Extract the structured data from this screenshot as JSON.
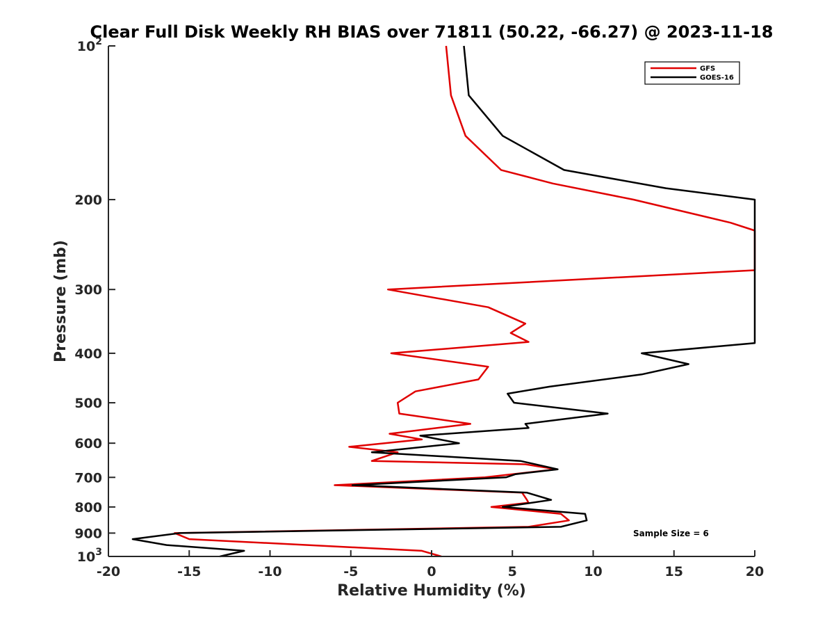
{
  "chart_data": {
    "type": "line",
    "title": "Clear Full Disk Weekly RH BIAS over 71811 (50.22, -66.27) @ 2023-11-18",
    "xlabel": "Relative Humidity (%)",
    "ylabel": "Pressure (mb)",
    "xlim": [
      -20,
      20
    ],
    "ylim": [
      100,
      1000
    ],
    "y_scale": "log",
    "y_reversed": true,
    "grid": false,
    "legend_position": "top-right",
    "x_ticks": [
      "-20",
      "-15",
      "-10",
      "-5",
      "0",
      "5",
      "10",
      "15",
      "20"
    ],
    "y_ticks": [
      {
        "base": "10",
        "exp": "2"
      },
      {
        "base": "200",
        "exp": ""
      },
      {
        "base": "300",
        "exp": ""
      },
      {
        "base": "400",
        "exp": ""
      },
      {
        "base": "500",
        "exp": ""
      },
      {
        "base": "600",
        "exp": ""
      },
      {
        "base": "700",
        "exp": ""
      },
      {
        "base": "800",
        "exp": ""
      },
      {
        "base": "900",
        "exp": ""
      },
      {
        "base": "10",
        "exp": "3"
      }
    ],
    "series": [
      {
        "name": "GFS",
        "color": "#e00000",
        "points": [
          [
            0.9,
            100
          ],
          [
            1.2,
            125
          ],
          [
            2.1,
            150
          ],
          [
            4.3,
            175
          ],
          [
            7.5,
            186
          ],
          [
            12.5,
            200
          ],
          [
            18.5,
            222
          ],
          [
            20,
            230
          ],
          [
            20,
            275
          ],
          [
            -2.7,
            300
          ],
          [
            3.5,
            325
          ],
          [
            5.8,
            350
          ],
          [
            4.9,
            365
          ],
          [
            6.0,
            380
          ],
          [
            -2.5,
            400
          ],
          [
            3.5,
            425
          ],
          [
            2.9,
            450
          ],
          [
            -1.0,
            475
          ],
          [
            -2.1,
            500
          ],
          [
            -2.0,
            525
          ],
          [
            2.4,
            550
          ],
          [
            -2.6,
            575
          ],
          [
            -0.6,
            590
          ],
          [
            -5.1,
            610
          ],
          [
            -2.1,
            625
          ],
          [
            -3.7,
            650
          ],
          [
            5.8,
            660
          ],
          [
            7.7,
            675
          ],
          [
            3.3,
            700
          ],
          [
            -6.0,
            725
          ],
          [
            5.6,
            750
          ],
          [
            5.9,
            775
          ],
          [
            6.0,
            785
          ],
          [
            3.7,
            800
          ],
          [
            8.0,
            825
          ],
          [
            8.5,
            850
          ],
          [
            6.0,
            875
          ],
          [
            -15.9,
            900
          ],
          [
            -15.0,
            925
          ],
          [
            -0.6,
            975
          ],
          [
            0.6,
            1000
          ]
        ]
      },
      {
        "name": "GOES-16",
        "color": "#000000",
        "points": [
          [
            2.0,
            100
          ],
          [
            2.3,
            125
          ],
          [
            4.4,
            150
          ],
          [
            8.2,
            175
          ],
          [
            14.5,
            190
          ],
          [
            20,
            200
          ],
          [
            20,
            382
          ],
          [
            13.0,
            400
          ],
          [
            15.9,
            420
          ],
          [
            13.0,
            440
          ],
          [
            7.3,
            465
          ],
          [
            4.7,
            480
          ],
          [
            5.1,
            500
          ],
          [
            10.9,
            525
          ],
          [
            5.8,
            550
          ],
          [
            6.0,
            560
          ],
          [
            -0.7,
            580
          ],
          [
            1.7,
            600
          ],
          [
            -3.7,
            625
          ],
          [
            5.5,
            650
          ],
          [
            7.8,
            675
          ],
          [
            5.2,
            690
          ],
          [
            4.6,
            700
          ],
          [
            -4.9,
            725
          ],
          [
            5.9,
            750
          ],
          [
            7.4,
            775
          ],
          [
            4.4,
            800
          ],
          [
            9.5,
            825
          ],
          [
            9.6,
            850
          ],
          [
            8.0,
            875
          ],
          [
            -15.6,
            900
          ],
          [
            -18.5,
            925
          ],
          [
            -16.4,
            950
          ],
          [
            -11.6,
            975
          ],
          [
            -13.1,
            1000
          ]
        ]
      }
    ],
    "annotations": [
      "Sample Size = 6"
    ]
  }
}
